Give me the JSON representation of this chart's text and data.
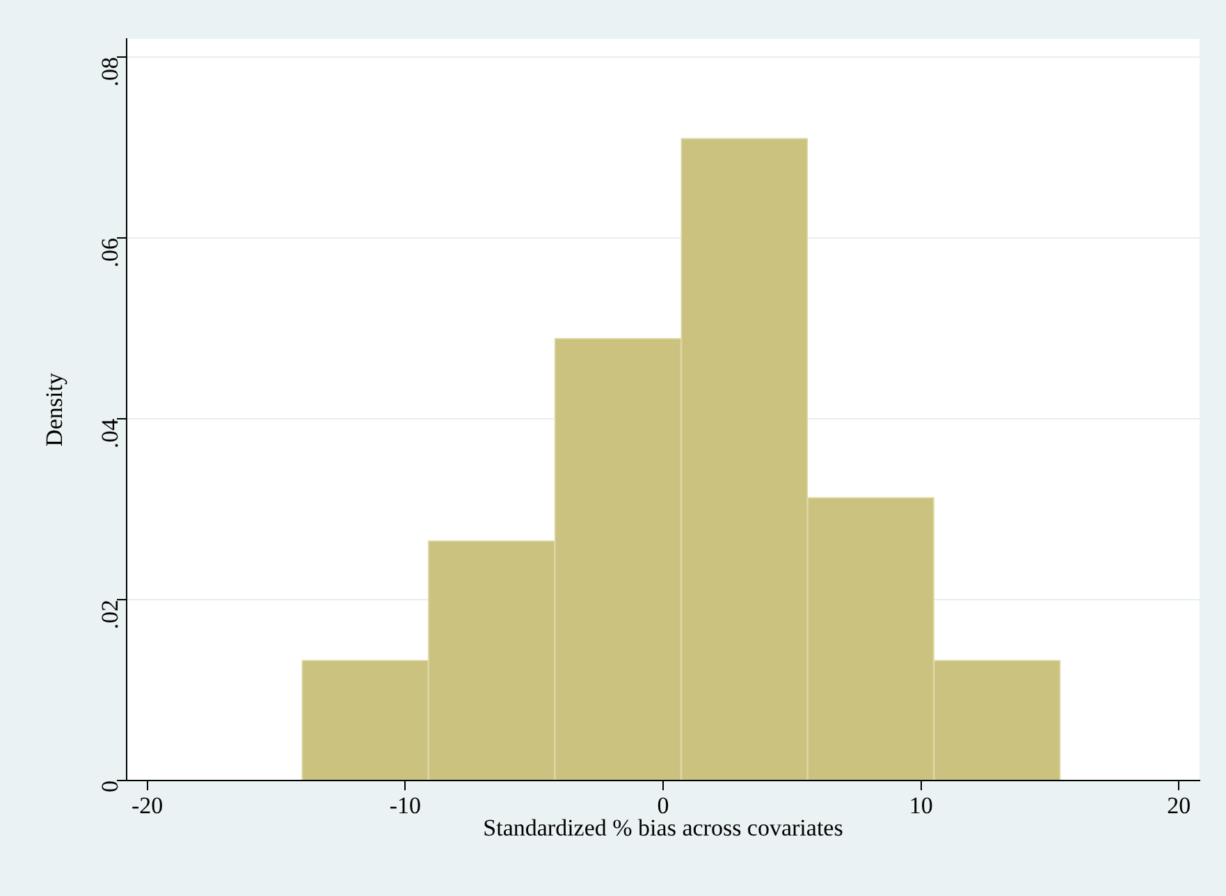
{
  "chart_data": {
    "type": "histogram",
    "xlabel": "Standardized % bias across covariates",
    "ylabel": "Density",
    "bins": [
      -14.0,
      -9.1,
      -4.2,
      0.7,
      5.6,
      10.5,
      15.4
    ],
    "values": [
      0.0133,
      0.0265,
      0.0489,
      0.071,
      0.0313,
      0.0133
    ],
    "color": "#cbc27f",
    "xlim": [
      -20.8,
      20.8
    ],
    "xticks": [
      {
        "value": -20,
        "label": "-20"
      },
      {
        "value": -10,
        "label": "-10"
      },
      0,
      10,
      20
    ],
    "ylim": [
      0,
      0.082
    ],
    "yticks": [
      0,
      {
        "value": 0.02,
        "label": ".02"
      },
      {
        "value": 0.04,
        "label": ".04"
      },
      {
        "value": 0.06,
        "label": ".06"
      },
      {
        "value": 0.08,
        "label": ".08"
      }
    ],
    "grid": "y"
  }
}
